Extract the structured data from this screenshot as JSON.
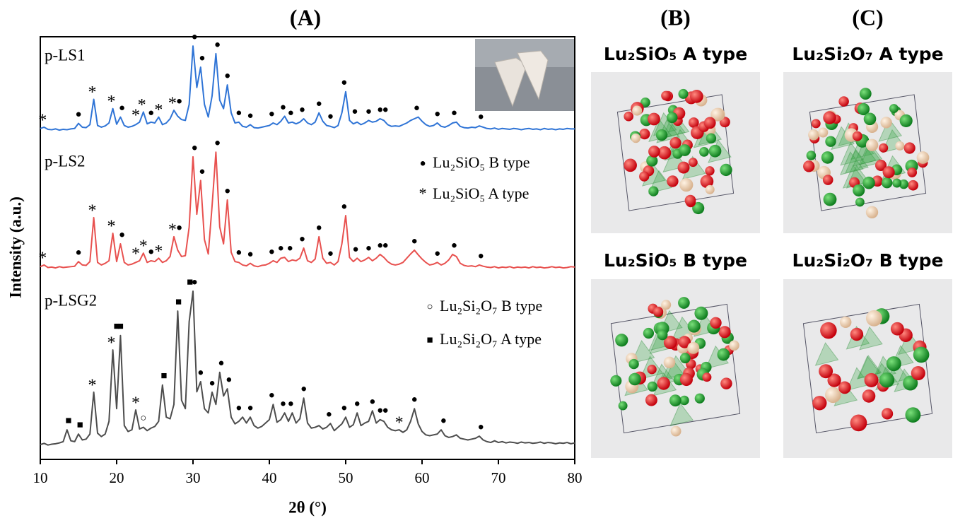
{
  "chart_data": {
    "type": "line",
    "title": "(A)",
    "x_label": "2θ (°)",
    "y_label": "Intensity (a.u.)",
    "xlim": [
      10,
      80
    ],
    "xticks": [
      10,
      20,
      30,
      40,
      50,
      60,
      70,
      80
    ],
    "ylim": [
      0,
      100
    ],
    "x": [
      10,
      10.5,
      11,
      11.5,
      12,
      12.5,
      13,
      13.5,
      14,
      14.5,
      15,
      15.5,
      16,
      16.5,
      17,
      17.5,
      18,
      18.5,
      19,
      19.5,
      20,
      20.5,
      21,
      21.5,
      22,
      22.5,
      23,
      23.5,
      24,
      24.5,
      25,
      25.5,
      26,
      26.5,
      27,
      27.5,
      28,
      28.5,
      29,
      29.5,
      30,
      30.5,
      31,
      31.5,
      32,
      32.5,
      33,
      33.5,
      34,
      34.5,
      35,
      35.5,
      36,
      36.5,
      37,
      37.5,
      38,
      38.5,
      39,
      39.5,
      40,
      40.5,
      41,
      41.5,
      42,
      42.5,
      43,
      43.5,
      44,
      44.5,
      45,
      45.5,
      46,
      46.5,
      47,
      47.5,
      48,
      48.5,
      49,
      49.5,
      50,
      50.5,
      51,
      51.5,
      52,
      52.5,
      53,
      53.5,
      54,
      54.5,
      55,
      55.5,
      56,
      56.5,
      57,
      57.5,
      58,
      58.5,
      59,
      59.5,
      60,
      60.5,
      61,
      61.5,
      62,
      62.5,
      63,
      63.5,
      64,
      64.5,
      65,
      65.5,
      66,
      66.5,
      67,
      67.5,
      68,
      68.5,
      69,
      69.5,
      70,
      70.5,
      71,
      71.5,
      72,
      72.5,
      73,
      73.5,
      74,
      74.5,
      75,
      75.5,
      76,
      76.5,
      77,
      77.5,
      78,
      78.5,
      79,
      79.5,
      80
    ],
    "series": [
      {
        "name": "p-LS1",
        "color": "#2f74d6",
        "values": [
          78.3,
          78.6,
          78.1,
          78.0,
          78.2,
          77.9,
          78.1,
          78.0,
          78.2,
          78.3,
          79.5,
          78.6,
          78.5,
          79.2,
          85.2,
          79.0,
          78.6,
          78.9,
          79.6,
          83.0,
          79.3,
          81.0,
          79.0,
          78.6,
          78.8,
          79.2,
          79.8,
          82.2,
          79.4,
          79.8,
          79.6,
          81.0,
          79.2,
          79.6,
          80.6,
          82.6,
          81.2,
          80.4,
          80.2,
          84.0,
          97.8,
          88.0,
          92.8,
          84.0,
          81.0,
          86.0,
          96.0,
          85.0,
          83.0,
          88.6,
          82.0,
          79.6,
          79.8,
          78.8,
          78.6,
          79.2,
          78.5,
          78.4,
          78.6,
          78.8,
          79.0,
          79.6,
          79.2,
          80.0,
          81.2,
          79.6,
          79.8,
          79.4,
          79.8,
          80.6,
          79.6,
          79.2,
          79.8,
          82.0,
          80.0,
          79.0,
          78.8,
          78.5,
          79.0,
          82.0,
          87.0,
          80.2,
          79.4,
          79.8,
          79.2,
          79.6,
          80.2,
          79.8,
          80.0,
          80.6,
          80.2,
          79.2,
          78.8,
          78.9,
          78.8,
          79.2,
          79.6,
          80.2,
          80.6,
          81.0,
          80.0,
          79.2,
          78.8,
          79.0,
          79.6,
          78.8,
          78.6,
          79.0,
          79.6,
          79.8,
          78.8,
          78.5,
          78.4,
          78.6,
          78.5,
          78.9,
          78.6,
          78.3,
          78.2,
          78.4,
          78.1,
          78.3,
          78.2,
          78.1,
          78.3,
          78.2,
          78.0,
          78.2,
          78.3,
          78.1,
          78.2,
          78.0,
          78.3,
          78.1,
          78.2,
          78.0,
          78.2,
          78.1,
          78.3,
          78.2,
          78.2
        ],
        "markers": [
          {
            "x": 10.3,
            "symbol": "*"
          },
          {
            "x": 15,
            "symbol": "●"
          },
          {
            "x": 16.8,
            "symbol": "*"
          },
          {
            "x": 19.3,
            "symbol": "*"
          },
          {
            "x": 20.7,
            "symbol": "●"
          },
          {
            "x": 22.5,
            "symbol": "*"
          },
          {
            "x": 23.3,
            "symbol": "*"
          },
          {
            "x": 24.5,
            "symbol": "●"
          },
          {
            "x": 25.5,
            "symbol": "*"
          },
          {
            "x": 27.3,
            "symbol": "*"
          },
          {
            "x": 28.2,
            "symbol": "●"
          },
          {
            "x": 30.2,
            "symbol": "●"
          },
          {
            "x": 31.2,
            "symbol": "●"
          },
          {
            "x": 33.2,
            "symbol": "●"
          },
          {
            "x": 34.5,
            "symbol": "●"
          },
          {
            "x": 36,
            "symbol": "●"
          },
          {
            "x": 37.5,
            "symbol": "●"
          },
          {
            "x": 40.3,
            "symbol": "●"
          },
          {
            "x": 41.8,
            "symbol": "●"
          },
          {
            "x": 42.8,
            "symbol": "●"
          },
          {
            "x": 44.3,
            "symbol": "●"
          },
          {
            "x": 46.5,
            "symbol": "●"
          },
          {
            "x": 48,
            "symbol": "●"
          },
          {
            "x": 49.8,
            "symbol": "●"
          },
          {
            "x": 51.2,
            "symbol": "●"
          },
          {
            "x": 53,
            "symbol": "●"
          },
          {
            "x": 54.5,
            "symbol": "●"
          },
          {
            "x": 55.2,
            "symbol": "●"
          },
          {
            "x": 59.3,
            "symbol": "●"
          },
          {
            "x": 62,
            "symbol": "●"
          },
          {
            "x": 64.2,
            "symbol": "●"
          },
          {
            "x": 67.7,
            "symbol": "●"
          }
        ]
      },
      {
        "name": "p-LS2",
        "color": "#e8514f",
        "values": [
          45.6,
          46.0,
          45.4,
          45.5,
          45.3,
          45.6,
          45.4,
          45.5,
          45.6,
          45.7,
          46.8,
          46.0,
          45.9,
          46.8,
          57.2,
          46.6,
          46.0,
          46.4,
          47.0,
          53.5,
          46.8,
          51.0,
          46.6,
          46.0,
          46.2,
          46.6,
          47.0,
          48.8,
          46.6,
          47.0,
          46.8,
          47.6,
          46.6,
          47.0,
          48.0,
          52.7,
          49.5,
          48.0,
          48.2,
          55.0,
          71.6,
          58.0,
          66.0,
          52.0,
          48.6,
          60.0,
          72.7,
          55.0,
          51.0,
          61.4,
          49.0,
          46.8,
          46.6,
          46.0,
          45.8,
          46.4,
          45.8,
          45.6,
          45.9,
          46.0,
          46.4,
          47.0,
          46.6,
          47.6,
          47.8,
          46.8,
          47.2,
          47.0,
          47.6,
          50.0,
          47.0,
          46.6,
          47.4,
          52.7,
          47.6,
          46.4,
          46.6,
          46.0,
          46.8,
          51.0,
          57.7,
          47.8,
          46.8,
          47.6,
          46.8,
          47.2,
          47.8,
          47.0,
          47.6,
          48.5,
          47.8,
          46.8,
          46.2,
          46.0,
          46.2,
          46.6,
          47.6,
          48.6,
          49.5,
          48.4,
          47.4,
          46.6,
          46.0,
          46.2,
          46.6,
          46.0,
          46.4,
          47.2,
          48.5,
          48.0,
          46.4,
          45.9,
          45.7,
          45.8,
          45.6,
          46.0,
          45.7,
          45.5,
          45.4,
          45.6,
          45.3,
          45.5,
          45.4,
          45.6,
          45.3,
          45.5,
          45.4,
          45.5,
          45.3,
          45.6,
          45.4,
          45.5,
          45.3,
          45.4,
          45.6,
          45.4,
          45.5,
          45.3,
          45.4,
          45.6,
          45.5
        ],
        "markers": [
          {
            "x": 10.3,
            "symbol": "*"
          },
          {
            "x": 15,
            "symbol": "●"
          },
          {
            "x": 16.8,
            "symbol": "*"
          },
          {
            "x": 19.3,
            "symbol": "*"
          },
          {
            "x": 20.7,
            "symbol": "●"
          },
          {
            "x": 22.5,
            "symbol": "*"
          },
          {
            "x": 23.5,
            "symbol": "*"
          },
          {
            "x": 24.5,
            "symbol": "●"
          },
          {
            "x": 25.5,
            "symbol": "*"
          },
          {
            "x": 27.3,
            "symbol": "*"
          },
          {
            "x": 28.2,
            "symbol": "●"
          },
          {
            "x": 30.2,
            "symbol": "●"
          },
          {
            "x": 31.2,
            "symbol": "●"
          },
          {
            "x": 33.2,
            "symbol": "●"
          },
          {
            "x": 34.5,
            "symbol": "●"
          },
          {
            "x": 36,
            "symbol": "●"
          },
          {
            "x": 37.5,
            "symbol": "●"
          },
          {
            "x": 40.3,
            "symbol": "●"
          },
          {
            "x": 41.5,
            "symbol": "●"
          },
          {
            "x": 42.7,
            "symbol": "●"
          },
          {
            "x": 44.3,
            "symbol": "●"
          },
          {
            "x": 46.5,
            "symbol": "●"
          },
          {
            "x": 48,
            "symbol": "●"
          },
          {
            "x": 49.8,
            "symbol": "●"
          },
          {
            "x": 51.3,
            "symbol": "●"
          },
          {
            "x": 53,
            "symbol": "●"
          },
          {
            "x": 54.5,
            "symbol": "●"
          },
          {
            "x": 55.2,
            "symbol": "●"
          },
          {
            "x": 59,
            "symbol": "●"
          },
          {
            "x": 62,
            "symbol": "●"
          },
          {
            "x": 64.2,
            "symbol": "●"
          },
          {
            "x": 67.7,
            "symbol": "●"
          }
        ]
      },
      {
        "name": "p-LSG2",
        "color": "#4d4d4d",
        "values": [
          3.5,
          3.8,
          3.4,
          3.6,
          3.7,
          3.9,
          4.2,
          7.0,
          4.4,
          4.2,
          6.0,
          4.6,
          4.8,
          6.0,
          15.9,
          6.2,
          5.4,
          6.0,
          9.0,
          25.9,
          12.0,
          29.3,
          8.0,
          6.6,
          7.0,
          11.7,
          7.2,
          7.6,
          6.8,
          7.4,
          7.8,
          9.0,
          17.6,
          10.0,
          9.6,
          13.0,
          35.1,
          14.0,
          12.0,
          32.6,
          39.8,
          16.0,
          18.4,
          12.0,
          11.0,
          15.9,
          13.0,
          20.6,
          15.0,
          16.7,
          10.0,
          8.4,
          9.0,
          10.0,
          8.6,
          10.0,
          8.0,
          7.4,
          7.8,
          8.6,
          9.4,
          13.0,
          8.8,
          9.4,
          11.0,
          9.0,
          11.0,
          8.6,
          9.6,
          14.5,
          8.6,
          7.4,
          7.6,
          8.0,
          7.2,
          7.6,
          8.5,
          6.8,
          7.6,
          8.4,
          10.0,
          7.6,
          8.2,
          11.0,
          8.0,
          8.6,
          9.0,
          11.5,
          8.6,
          9.4,
          9.0,
          7.6,
          7.0,
          6.8,
          7.0,
          6.4,
          7.0,
          9.0,
          12.0,
          8.4,
          6.6,
          5.8,
          5.6,
          5.8,
          6.0,
          7.0,
          5.6,
          5.2,
          5.4,
          5.8,
          5.0,
          4.8,
          4.6,
          4.8,
          5.0,
          5.5,
          4.6,
          4.2,
          4.0,
          4.4,
          4.0,
          4.2,
          3.9,
          4.1,
          4.0,
          3.8,
          4.1,
          3.9,
          4.0,
          3.8,
          3.9,
          4.1,
          3.8,
          4.0,
          3.9,
          3.7,
          3.9,
          3.8,
          4.0,
          3.7,
          3.9
        ],
        "markers": [
          {
            "x": 13.7,
            "symbol": "■"
          },
          {
            "x": 15.2,
            "symbol": "■"
          },
          {
            "x": 16.8,
            "symbol": "*"
          },
          {
            "x": 19.3,
            "symbol": "*"
          },
          {
            "x": 20,
            "symbol": "■"
          },
          {
            "x": 20.5,
            "symbol": "■"
          },
          {
            "x": 22.5,
            "symbol": "*"
          },
          {
            "x": 23.5,
            "symbol": "○"
          },
          {
            "x": 26.2,
            "symbol": "■"
          },
          {
            "x": 28.1,
            "symbol": "■"
          },
          {
            "x": 29.6,
            "symbol": "■"
          },
          {
            "x": 30.2,
            "symbol": "●"
          },
          {
            "x": 31,
            "symbol": "●"
          },
          {
            "x": 32.5,
            "symbol": "●"
          },
          {
            "x": 33.7,
            "symbol": "●"
          },
          {
            "x": 34.7,
            "symbol": "●"
          },
          {
            "x": 36,
            "symbol": "●"
          },
          {
            "x": 37.5,
            "symbol": "●"
          },
          {
            "x": 40.3,
            "symbol": "●"
          },
          {
            "x": 41.8,
            "symbol": "●"
          },
          {
            "x": 42.8,
            "symbol": "●"
          },
          {
            "x": 44.5,
            "symbol": "●"
          },
          {
            "x": 47.8,
            "symbol": "●"
          },
          {
            "x": 49.8,
            "symbol": "●"
          },
          {
            "x": 51.5,
            "symbol": "●"
          },
          {
            "x": 53.5,
            "symbol": "●"
          },
          {
            "x": 54.5,
            "symbol": "●"
          },
          {
            "x": 55.2,
            "symbol": "●"
          },
          {
            "x": 57,
            "symbol": "*"
          },
          {
            "x": 59,
            "symbol": "●"
          },
          {
            "x": 62.8,
            "symbol": "●"
          },
          {
            "x": 67.7,
            "symbol": "●"
          }
        ]
      }
    ],
    "legend": [
      {
        "symbol": "●",
        "label": "Lu₂SiO₅ B type"
      },
      {
        "symbol": "*",
        "label": "Lu₂SiO₅ A type"
      },
      {
        "symbol": "○",
        "label": "Lu₂Si₂O₇ B type"
      },
      {
        "symbol": "■",
        "label": "Lu₂Si₂O₇ A type"
      }
    ]
  },
  "panels": [
    {
      "label": "(B)",
      "structures": [
        {
          "title": "Lu₂SiO₅ A type"
        },
        {
          "title": "Lu₂SiO₅ B type"
        }
      ]
    },
    {
      "label": "(C)",
      "structures": [
        {
          "title": "Lu₂Si₂O₇ A type"
        },
        {
          "title": "Lu₂Si₂O₇ B type"
        }
      ]
    }
  ]
}
